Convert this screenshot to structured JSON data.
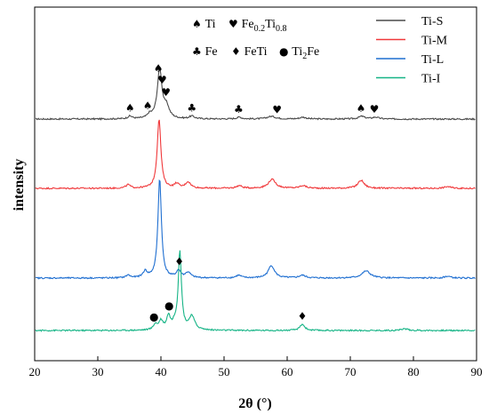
{
  "chart_data": {
    "type": "line",
    "xlabel": "2θ (°)",
    "ylabel": "intensity",
    "xlim": [
      20,
      90
    ],
    "xticks": [
      20,
      30,
      40,
      50,
      60,
      70,
      80,
      90
    ],
    "grid": false,
    "legend_position": "top-right",
    "phase_legend": {
      "row1": [
        {
          "symbol": "♠",
          "label": "Ti"
        },
        {
          "symbol": "♥",
          "label": "Fe",
          "sub1": "0.2",
          "mid": "Ti",
          "sub2": "0.8"
        }
      ],
      "row2": [
        {
          "symbol": "♣",
          "label": "Fe"
        },
        {
          "symbol": "♦",
          "label": "FeTi"
        },
        {
          "symbol": "●",
          "label": "Ti",
          "sub1": "2",
          "mid": "Fe"
        }
      ]
    },
    "series": [
      {
        "name": "Ti-S",
        "color": "#4a4a4a",
        "baseline": 0,
        "peaks": [
          {
            "x": 35.1,
            "h": 3,
            "w": 0.4
          },
          {
            "x": 38.2,
            "h": 4,
            "w": 0.4
          },
          {
            "x": 39.8,
            "h": 55,
            "w": 0.45
          },
          {
            "x": 40.9,
            "h": 12,
            "w": 0.5
          },
          {
            "x": 44.9,
            "h": 3,
            "w": 0.5
          },
          {
            "x": 52.4,
            "h": 2,
            "w": 0.5
          },
          {
            "x": 57.5,
            "h": 3,
            "w": 0.8
          },
          {
            "x": 62.5,
            "h": 2,
            "w": 0.6
          },
          {
            "x": 71.8,
            "h": 3,
            "w": 0.6
          },
          {
            "x": 74.0,
            "h": 2,
            "w": 0.6
          }
        ],
        "markers": [
          {
            "x": 35.1,
            "symbol": "♠"
          },
          {
            "x": 37.9,
            "symbol": "♠"
          },
          {
            "x": 39.6,
            "symbol": "♠"
          },
          {
            "x": 40.2,
            "symbol": "♥"
          },
          {
            "x": 40.8,
            "symbol": "♥"
          },
          {
            "x": 44.9,
            "symbol": "♣"
          },
          {
            "x": 52.3,
            "symbol": "♣"
          },
          {
            "x": 58.4,
            "symbol": "♥"
          },
          {
            "x": 71.7,
            "symbol": "♠"
          },
          {
            "x": 73.8,
            "symbol": "♥"
          }
        ]
      },
      {
        "name": "Ti-M",
        "color": "#f0383a",
        "baseline": 0,
        "peaks": [
          {
            "x": 34.8,
            "h": 4,
            "w": 0.4
          },
          {
            "x": 39.7,
            "h": 78,
            "w": 0.35
          },
          {
            "x": 42.5,
            "h": 5,
            "w": 0.4
          },
          {
            "x": 44.3,
            "h": 7,
            "w": 0.5
          },
          {
            "x": 52.4,
            "h": 3,
            "w": 0.5
          },
          {
            "x": 57.6,
            "h": 10,
            "w": 0.7
          },
          {
            "x": 62.5,
            "h": 3,
            "w": 0.6
          },
          {
            "x": 71.7,
            "h": 9,
            "w": 0.6
          },
          {
            "x": 85.4,
            "h": 2,
            "w": 0.6
          }
        ],
        "markers": []
      },
      {
        "name": "Ti-L",
        "color": "#1f6fd1",
        "baseline": 0,
        "peaks": [
          {
            "x": 34.8,
            "h": 3,
            "w": 0.4
          },
          {
            "x": 37.5,
            "h": 7,
            "w": 0.4
          },
          {
            "x": 39.8,
            "h": 112,
            "w": 0.33
          },
          {
            "x": 42.8,
            "h": 8,
            "w": 0.4
          },
          {
            "x": 44.3,
            "h": 6,
            "w": 0.5
          },
          {
            "x": 52.3,
            "h": 3,
            "w": 0.5
          },
          {
            "x": 57.5,
            "h": 14,
            "w": 0.6
          },
          {
            "x": 62.4,
            "h": 3,
            "w": 0.6
          },
          {
            "x": 72.5,
            "h": 8,
            "w": 0.8
          },
          {
            "x": 85.4,
            "h": 2,
            "w": 0.6
          }
        ],
        "markers": [
          {
            "x": 42.9,
            "symbol": "♦"
          }
        ]
      },
      {
        "name": "Ti-I",
        "color": "#16b486",
        "baseline": 0,
        "peaks": [
          {
            "x": 39.1,
            "h": 6,
            "w": 0.35
          },
          {
            "x": 40.0,
            "h": 10,
            "w": 0.4
          },
          {
            "x": 41.2,
            "h": 15,
            "w": 0.35
          },
          {
            "x": 42.2,
            "h": 6,
            "w": 0.4
          },
          {
            "x": 43.0,
            "h": 88,
            "w": 0.3
          },
          {
            "x": 44.9,
            "h": 15,
            "w": 0.55
          },
          {
            "x": 62.4,
            "h": 7,
            "w": 0.45
          },
          {
            "x": 78.6,
            "h": 2,
            "w": 0.6
          }
        ],
        "markers": [
          {
            "x": 38.9,
            "symbol": "●"
          },
          {
            "x": 41.3,
            "symbol": "●"
          },
          {
            "x": 62.4,
            "symbol": "♦"
          }
        ]
      }
    ]
  }
}
